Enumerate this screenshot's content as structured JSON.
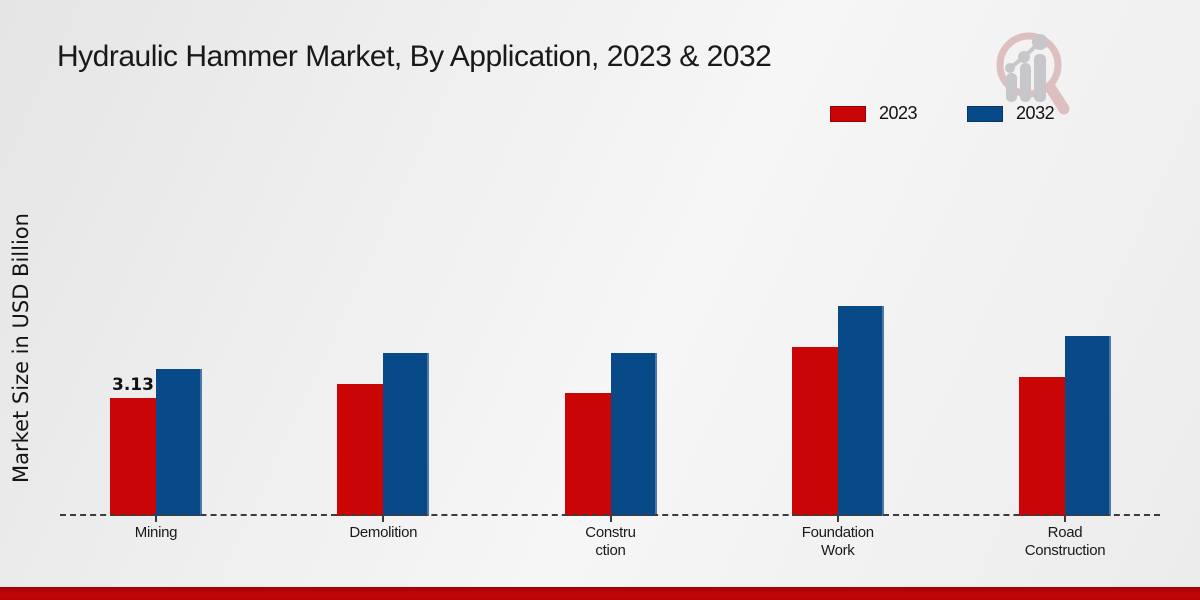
{
  "title": "Hydraulic Hammer Market, By Application, 2023 & 2032",
  "y_axis_label": "Market Size in USD Billion",
  "legend": {
    "items": [
      {
        "label": "2023",
        "color": "#c90506"
      },
      {
        "label": "2032",
        "color": "#084a88"
      }
    ]
  },
  "chart_data": {
    "type": "bar",
    "title": "Hydraulic Hammer Market, By Application, 2023 & 2032",
    "xlabel": "",
    "ylabel": "Market Size in USD Billion",
    "categories": [
      "Mining",
      "Demolition",
      "Construction",
      "Foundation Work",
      "Road Construction"
    ],
    "category_label_lines": [
      [
        "Mining"
      ],
      [
        "Demolition"
      ],
      [
        "Constru",
        "ction"
      ],
      [
        "Foundation",
        "Work"
      ],
      [
        "Road",
        "Construction"
      ]
    ],
    "series": [
      {
        "name": "2023",
        "color": "#c90506",
        "values": [
          3.13,
          3.5,
          3.26,
          4.48,
          3.69
        ]
      },
      {
        "name": "2032",
        "color": "#084a88",
        "values": [
          3.9,
          4.32,
          4.32,
          5.57,
          4.77
        ]
      }
    ],
    "data_labels": [
      {
        "series_index": 0,
        "category_index": 0,
        "text": "3.13"
      }
    ],
    "baseline_value": 0,
    "grid": false,
    "legend_position": "top-right",
    "note": "values in USD Billion; only Mining 2023 labeled on chart"
  },
  "colors": {
    "series_2023": "#c90506",
    "series_2032": "#084a88",
    "bottom_strip": "#c50606",
    "background": "#efefef",
    "watermark_pink": "#ddbfbf",
    "watermark_gray": "#c7c7cb"
  }
}
